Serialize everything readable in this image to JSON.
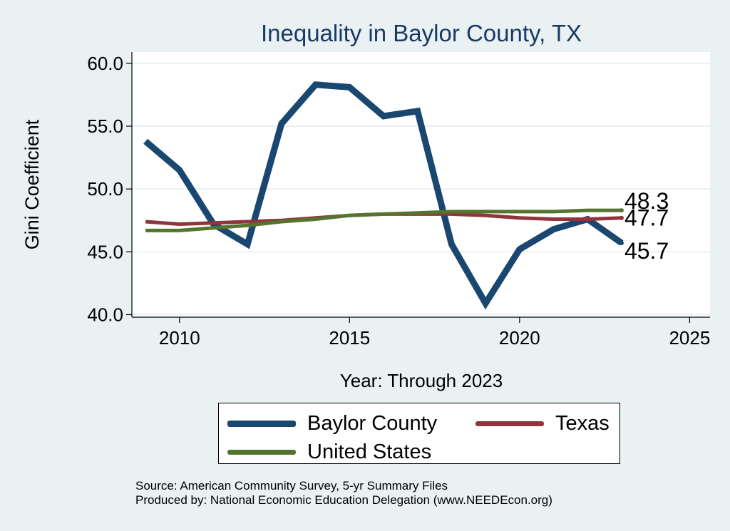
{
  "chart_data": {
    "type": "line",
    "title": "Inequality in Baylor County, TX",
    "xlabel": "Year: Through 2023",
    "ylabel": "Gini Coefficient",
    "xlim": [
      2008.6,
      2025.6
    ],
    "ylim": [
      39.8,
      60.9
    ],
    "xticks": [
      2010,
      2015,
      2020,
      2025
    ],
    "xtick_labels": [
      "2010",
      "2015",
      "2020",
      "2025"
    ],
    "yticks": [
      40,
      45,
      50,
      55,
      60
    ],
    "ytick_labels": [
      "40.0",
      "45.0",
      "50.0",
      "55.0",
      "60.0"
    ],
    "grid": true,
    "legend_position": "bottom",
    "series": [
      {
        "name": "Baylor County",
        "color": "#1a476f",
        "x": [
          2009,
          2010,
          2011,
          2012,
          2013,
          2014,
          2015,
          2016,
          2017,
          2018,
          2019,
          2020,
          2021,
          2022,
          2023
        ],
        "values": [
          53.8,
          51.5,
          47.2,
          45.6,
          55.2,
          58.3,
          58.1,
          55.8,
          56.2,
          45.6,
          40.9,
          45.2,
          46.8,
          47.6,
          45.7
        ],
        "end_label": "45.7"
      },
      {
        "name": "Texas",
        "color": "#90353b",
        "x": [
          2009,
          2010,
          2011,
          2012,
          2013,
          2014,
          2015,
          2016,
          2017,
          2018,
          2019,
          2020,
          2021,
          2022,
          2023
        ],
        "values": [
          47.4,
          47.2,
          47.3,
          47.4,
          47.5,
          47.7,
          47.9,
          48.0,
          48.0,
          48.0,
          47.9,
          47.7,
          47.6,
          47.6,
          47.7
        ],
        "end_label": "47.7"
      },
      {
        "name": "United States",
        "color": "#55752f",
        "x": [
          2009,
          2010,
          2011,
          2012,
          2013,
          2014,
          2015,
          2016,
          2017,
          2018,
          2019,
          2020,
          2021,
          2022,
          2023
        ],
        "values": [
          46.7,
          46.7,
          46.9,
          47.1,
          47.4,
          47.6,
          47.9,
          48.0,
          48.1,
          48.2,
          48.2,
          48.2,
          48.2,
          48.3,
          48.3
        ],
        "end_label": "48.3"
      }
    ]
  },
  "legend": {
    "items": [
      {
        "label": "Baylor County",
        "color": "#1a476f"
      },
      {
        "label": "Texas",
        "color": "#90353b"
      },
      {
        "label": "United States",
        "color": "#55752f"
      }
    ]
  },
  "source": {
    "line1": "Source: American Community Survey, 5-yr Summary Files",
    "line2": "Produced by: National Economic Education Delegation (www.NEEDEcon.org)"
  }
}
